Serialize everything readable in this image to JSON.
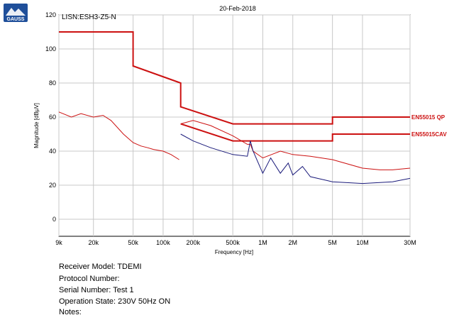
{
  "header": {
    "date": "20-Feb-2018",
    "logo_text": "GAUSS"
  },
  "info": {
    "receiver_model": "Receiver Model: TDEMI",
    "protocol_number": "Protocol Number:",
    "serial_number": "Serial Number: Test 1",
    "operation_state": "Operation State: 230V 50Hz ON",
    "notes": "Notes:"
  },
  "colors": {
    "limit_line": "#cc1111",
    "peak_trace": "#cc1111",
    "average_trace": "#1a1a7a",
    "grid": "#c8c8c8",
    "logo": "#1f4f9a"
  },
  "chart_data": {
    "type": "line",
    "title": "LISN:ESH3-Z5-N",
    "xlabel": "Frequency [Hz]",
    "ylabel": "Magnitude [dBµV]",
    "x_scale": "log",
    "xlim": [
      9000,
      30000000
    ],
    "ylim": [
      -10,
      120
    ],
    "y_ticks": [
      0,
      20,
      40,
      60,
      80,
      100,
      120
    ],
    "x_ticks": [
      {
        "v": 9000,
        "label": "9k"
      },
      {
        "v": 20000,
        "label": "20k"
      },
      {
        "v": 50000,
        "label": "50k"
      },
      {
        "v": 100000,
        "label": "100k"
      },
      {
        "v": 200000,
        "label": "200k"
      },
      {
        "v": 500000,
        "label": "500k"
      },
      {
        "v": 1000000,
        "label": "1M"
      },
      {
        "v": 2000000,
        "label": "2M"
      },
      {
        "v": 5000000,
        "label": "5M"
      },
      {
        "v": 10000000,
        "label": "10M"
      },
      {
        "v": 30000000,
        "label": "30M"
      }
    ],
    "grid": true,
    "series": [
      {
        "name": "EN55015 QP",
        "role": "limit",
        "x": [
          9000,
          50000,
          50000,
          150000,
          150000,
          500000,
          5000000,
          5000000,
          30000000
        ],
        "y": [
          110,
          110,
          90,
          80,
          66,
          56,
          56,
          60,
          60
        ]
      },
      {
        "name": "EN55015CAV",
        "role": "limit",
        "x": [
          150000,
          500000,
          5000000,
          5000000,
          30000000
        ],
        "y": [
          56,
          46,
          46,
          50,
          50
        ]
      },
      {
        "role": "peak",
        "x": [
          9000,
          12000,
          15000,
          20000,
          25000,
          30000,
          40000,
          50000,
          60000,
          70000,
          80000,
          100000,
          120000,
          145000
        ],
        "y": [
          63,
          60,
          62,
          60,
          61,
          58,
          50,
          45,
          43,
          42,
          41,
          40,
          38,
          35
        ]
      },
      {
        "role": "peak",
        "x": [
          150000,
          200000,
          300000,
          500000,
          700000,
          750000,
          800000,
          1000000,
          1500000,
          2000000,
          3000000,
          5000000,
          10000000,
          15000000,
          20000000,
          30000000
        ],
        "y": [
          56,
          58,
          55,
          49,
          44,
          44,
          40,
          36,
          40,
          38,
          37,
          35,
          30,
          29,
          29,
          30
        ]
      },
      {
        "role": "average",
        "x": [
          150000,
          200000,
          300000,
          500000,
          700000,
          750000,
          800000,
          1000000,
          1200000,
          1500000,
          1800000,
          2000000,
          2500000,
          3000000,
          5000000,
          10000000,
          20000000,
          30000000
        ],
        "y": [
          50,
          46,
          42,
          38,
          37,
          46,
          40,
          27,
          36,
          27,
          33,
          26,
          31,
          25,
          22,
          21,
          22,
          24
        ]
      }
    ],
    "annotations": [
      {
        "text": "EN55015 QP",
        "y": 60
      },
      {
        "text": "EN55015CAV",
        "y": 50
      }
    ]
  }
}
